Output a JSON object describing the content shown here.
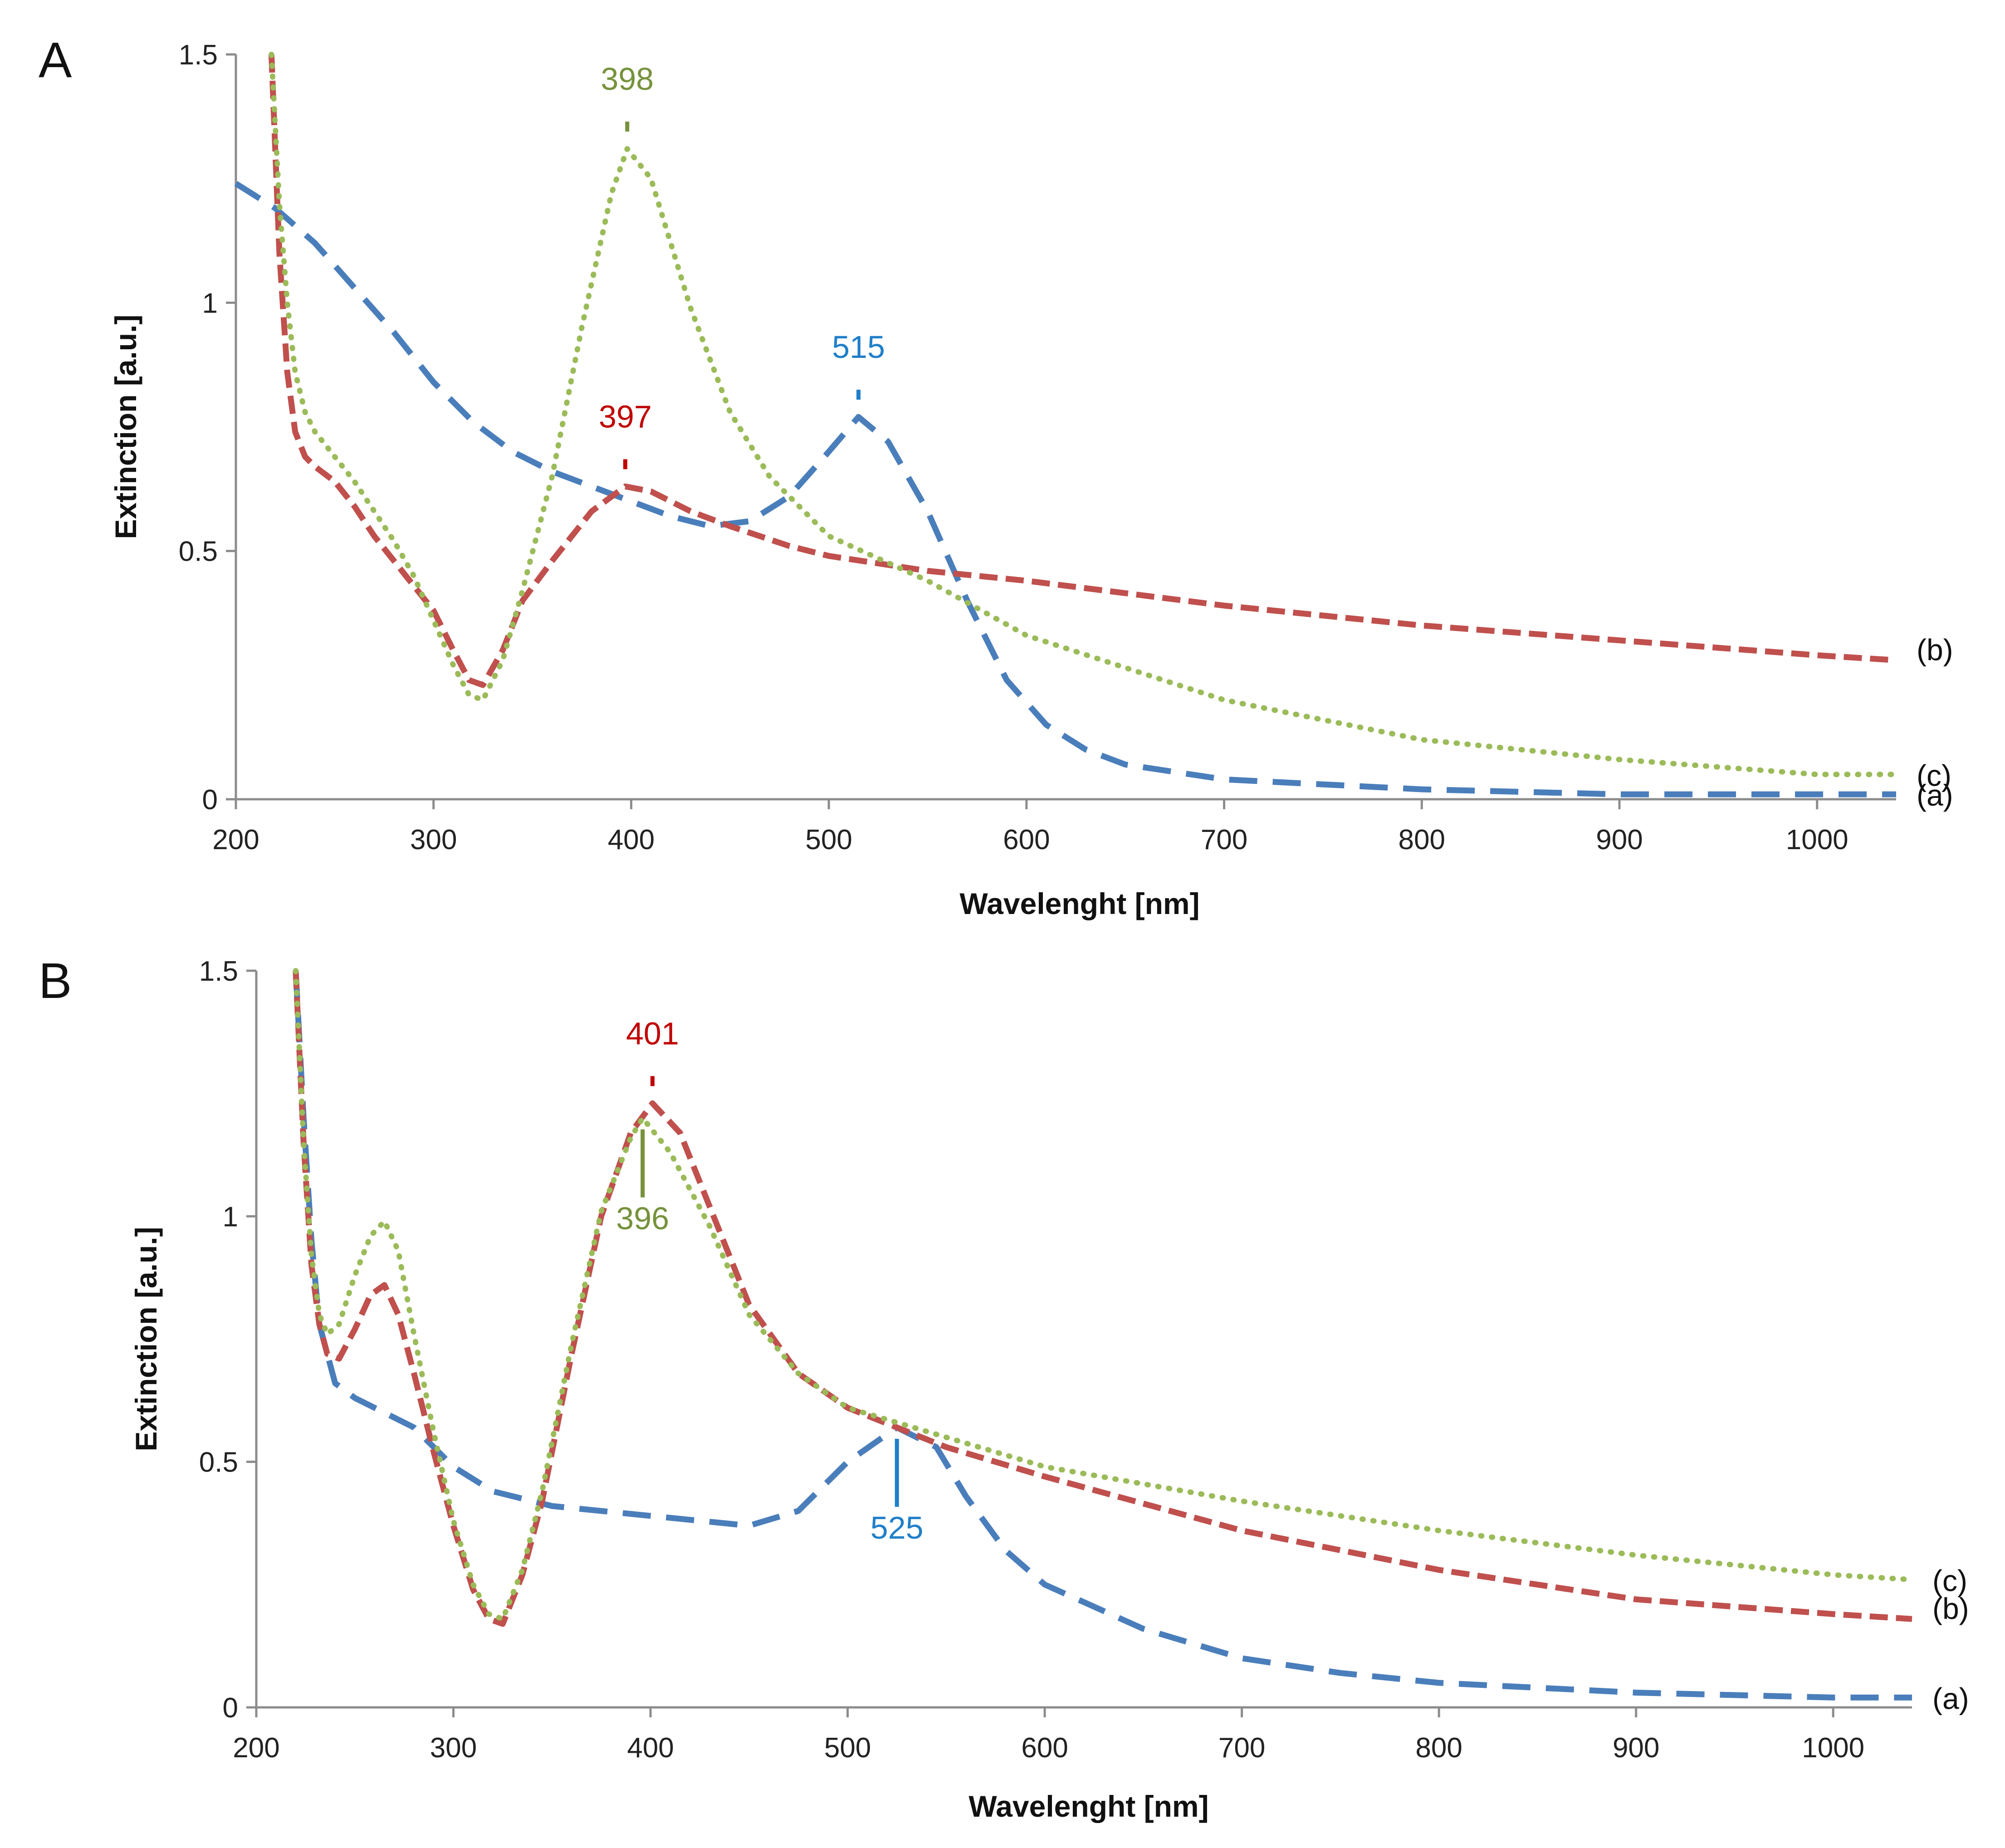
{
  "chart_data": [
    {
      "type": "line",
      "panel": "A",
      "xlabel": "Wavelenght [nm]",
      "ylabel": "Extinction [a.u.]",
      "xlim": [
        200,
        1040
      ],
      "ylim": [
        0,
        1.5
      ],
      "x_ticks": [
        "200",
        "300",
        "400",
        "500",
        "600",
        "700",
        "800",
        "900",
        "1000"
      ],
      "y_ticks": [
        "0",
        "0.5",
        "1",
        "1.5"
      ],
      "series": [
        {
          "name": "(a)",
          "color": "#4a7ebb",
          "style": "long-dash",
          "x": [
            200,
            220,
            240,
            260,
            280,
            300,
            320,
            340,
            360,
            380,
            400,
            420,
            440,
            460,
            480,
            500,
            515,
            530,
            550,
            570,
            590,
            610,
            630,
            650,
            700,
            750,
            800,
            900,
            1000,
            1040
          ],
          "y": [
            1.24,
            1.19,
            1.12,
            1.03,
            0.94,
            0.84,
            0.76,
            0.7,
            0.66,
            0.63,
            0.6,
            0.57,
            0.55,
            0.56,
            0.61,
            0.7,
            0.77,
            0.72,
            0.58,
            0.4,
            0.24,
            0.15,
            0.1,
            0.07,
            0.04,
            0.03,
            0.02,
            0.01,
            0.01,
            0.01
          ]
        },
        {
          "name": "(b)",
          "color": "#c0504d",
          "style": "dash",
          "x": [
            218,
            222,
            226,
            230,
            235,
            240,
            250,
            260,
            270,
            280,
            290,
            300,
            310,
            318,
            325,
            335,
            345,
            360,
            380,
            397,
            410,
            430,
            450,
            480,
            500,
            550,
            600,
            700,
            800,
            900,
            1000,
            1040
          ],
          "y": [
            1.5,
            1.1,
            0.86,
            0.74,
            0.69,
            0.67,
            0.64,
            0.59,
            0.53,
            0.48,
            0.43,
            0.38,
            0.3,
            0.24,
            0.23,
            0.3,
            0.4,
            0.48,
            0.58,
            0.63,
            0.62,
            0.58,
            0.55,
            0.51,
            0.49,
            0.46,
            0.44,
            0.39,
            0.35,
            0.32,
            0.29,
            0.28
          ]
        },
        {
          "name": "(c)",
          "color": "#9bbb59",
          "style": "dot",
          "x": [
            218,
            222,
            226,
            230,
            235,
            240,
            250,
            260,
            270,
            280,
            290,
            300,
            310,
            318,
            325,
            335,
            345,
            360,
            375,
            390,
            398,
            410,
            430,
            450,
            470,
            500,
            550,
            600,
            700,
            800,
            900,
            1000,
            1040
          ],
          "y": [
            1.5,
            1.2,
            1.0,
            0.86,
            0.78,
            0.74,
            0.69,
            0.64,
            0.58,
            0.52,
            0.45,
            0.36,
            0.27,
            0.21,
            0.2,
            0.28,
            0.42,
            0.65,
            0.95,
            1.22,
            1.31,
            1.25,
            0.99,
            0.78,
            0.65,
            0.53,
            0.44,
            0.33,
            0.2,
            0.12,
            0.08,
            0.05,
            0.05
          ]
        }
      ],
      "annotations": [
        {
          "text": "398",
          "x": 398,
          "color": "#76923c"
        },
        {
          "text": "515",
          "x": 515,
          "color": "#1f7fc9"
        },
        {
          "text": "397",
          "x": 397,
          "color": "#c00000"
        }
      ]
    },
    {
      "type": "line",
      "panel": "B",
      "xlabel": "Wavelenght [nm]",
      "ylabel": "Extinction [a.u.]",
      "xlim": [
        200,
        1040
      ],
      "ylim": [
        0,
        1.5
      ],
      "x_ticks": [
        "200",
        "300",
        "400",
        "500",
        "600",
        "700",
        "800",
        "900",
        "1000"
      ],
      "y_ticks": [
        "0",
        "0.5",
        "1",
        "1.5"
      ],
      "series": [
        {
          "name": "(a)",
          "color": "#4a7ebb",
          "style": "long-dash",
          "x": [
            220,
            224,
            228,
            232,
            240,
            250,
            280,
            300,
            320,
            350,
            400,
            450,
            475,
            500,
            525,
            545,
            560,
            580,
            600,
            650,
            700,
            750,
            800,
            900,
            1000,
            1040
          ],
          "y": [
            1.5,
            1.2,
            0.95,
            0.78,
            0.66,
            0.63,
            0.57,
            0.49,
            0.44,
            0.41,
            0.39,
            0.37,
            0.4,
            0.5,
            0.57,
            0.53,
            0.43,
            0.32,
            0.25,
            0.16,
            0.1,
            0.07,
            0.05,
            0.03,
            0.02,
            0.02
          ]
        },
        {
          "name": "(b)",
          "color": "#c0504d",
          "style": "dash",
          "x": [
            220,
            224,
            228,
            232,
            236,
            242,
            250,
            258,
            265,
            272,
            280,
            290,
            300,
            310,
            318,
            325,
            335,
            345,
            360,
            375,
            390,
            401,
            415,
            430,
            450,
            475,
            500,
            550,
            600,
            700,
            800,
            900,
            1000,
            1040
          ],
          "y": [
            1.5,
            1.15,
            0.9,
            0.78,
            0.72,
            0.71,
            0.77,
            0.84,
            0.86,
            0.8,
            0.68,
            0.52,
            0.37,
            0.24,
            0.18,
            0.17,
            0.27,
            0.42,
            0.72,
            1.0,
            1.17,
            1.23,
            1.17,
            1.02,
            0.82,
            0.68,
            0.61,
            0.53,
            0.47,
            0.36,
            0.28,
            0.22,
            0.19,
            0.18
          ]
        },
        {
          "name": "(c)",
          "color": "#9bbb59",
          "style": "dot",
          "x": [
            220,
            224,
            228,
            232,
            236,
            242,
            250,
            258,
            265,
            272,
            280,
            290,
            300,
            310,
            318,
            325,
            335,
            345,
            360,
            375,
            390,
            396,
            410,
            430,
            450,
            475,
            500,
            550,
            600,
            700,
            800,
            900,
            1000,
            1040
          ],
          "y": [
            1.5,
            1.15,
            0.92,
            0.8,
            0.76,
            0.78,
            0.88,
            0.96,
            0.99,
            0.93,
            0.76,
            0.56,
            0.38,
            0.25,
            0.19,
            0.18,
            0.28,
            0.44,
            0.74,
            1.01,
            1.16,
            1.2,
            1.13,
            0.98,
            0.8,
            0.68,
            0.61,
            0.55,
            0.49,
            0.42,
            0.36,
            0.31,
            0.27,
            0.26
          ]
        }
      ],
      "annotations": [
        {
          "text": "401",
          "x": 401,
          "color": "#c00000"
        },
        {
          "text": "396",
          "x": 396,
          "color": "#76923c"
        },
        {
          "text": "525",
          "x": 525,
          "color": "#1f7fc9"
        }
      ]
    }
  ]
}
